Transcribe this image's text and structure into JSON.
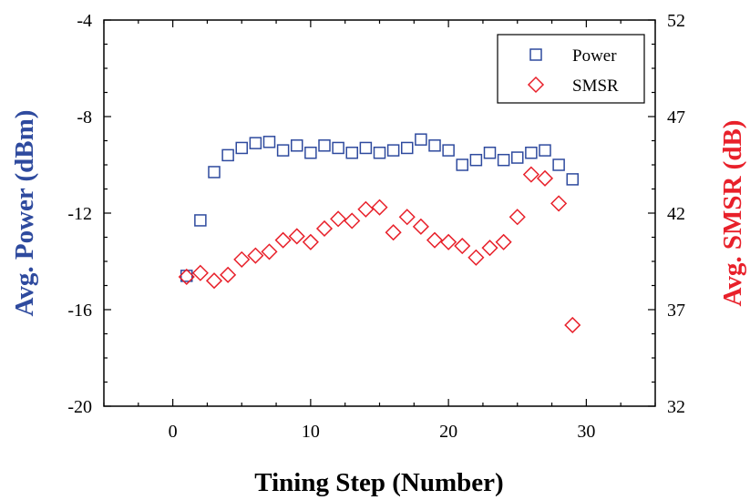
{
  "chart_data": {
    "type": "scatter",
    "xlabel": "Tining Step (Number)",
    "ylabel": "Avg. Power (dBm)",
    "y2label": "Avg. SMSR (dB)",
    "xlim": [
      -5,
      35
    ],
    "ylim": [
      -20,
      -4
    ],
    "y2lim": [
      32,
      52
    ],
    "x_ticks": [
      "0",
      "10",
      "20",
      "30"
    ],
    "y_ticks": [
      "-20",
      "-16",
      "-12",
      "-8",
      "-4"
    ],
    "y2_ticks": [
      "32",
      "37",
      "42",
      "47",
      "52"
    ],
    "grid": false,
    "legend_position": "top-right",
    "colors": {
      "power": "#2E4A9E",
      "smsr": "#E8202A"
    },
    "series": [
      {
        "name": "Power",
        "axis": "left",
        "marker": "square",
        "x": [
          1,
          2,
          3,
          4,
          5,
          6,
          7,
          8,
          9,
          10,
          11,
          12,
          13,
          14,
          15,
          16,
          17,
          18,
          19,
          20,
          21,
          22,
          23,
          24,
          25,
          26,
          27,
          28,
          29
        ],
        "y": [
          -14.6,
          -12.3,
          -10.3,
          -9.6,
          -9.3,
          -9.1,
          -9.05,
          -9.4,
          -9.2,
          -9.5,
          -9.2,
          -9.3,
          -9.5,
          -9.3,
          -9.5,
          -9.4,
          -9.3,
          -8.95,
          -9.2,
          -9.4,
          -10.0,
          -9.8,
          -9.5,
          -9.8,
          -9.7,
          -9.5,
          -9.4,
          -10.0,
          -10.6
        ]
      },
      {
        "name": "SMSR",
        "axis": "right",
        "marker": "diamond",
        "x": [
          1,
          2,
          3,
          4,
          5,
          6,
          7,
          8,
          9,
          10,
          11,
          12,
          13,
          14,
          15,
          16,
          17,
          18,
          19,
          20,
          21,
          22,
          23,
          24,
          25,
          26,
          27,
          28,
          29
        ],
        "y": [
          38.7,
          38.9,
          38.5,
          38.8,
          39.6,
          39.8,
          40.0,
          40.6,
          40.8,
          40.5,
          41.2,
          41.7,
          41.6,
          42.2,
          42.3,
          41.0,
          41.8,
          41.3,
          40.6,
          40.5,
          40.3,
          39.7,
          40.2,
          40.5,
          41.8,
          44.0,
          43.8,
          42.5,
          36.2
        ]
      }
    ]
  }
}
